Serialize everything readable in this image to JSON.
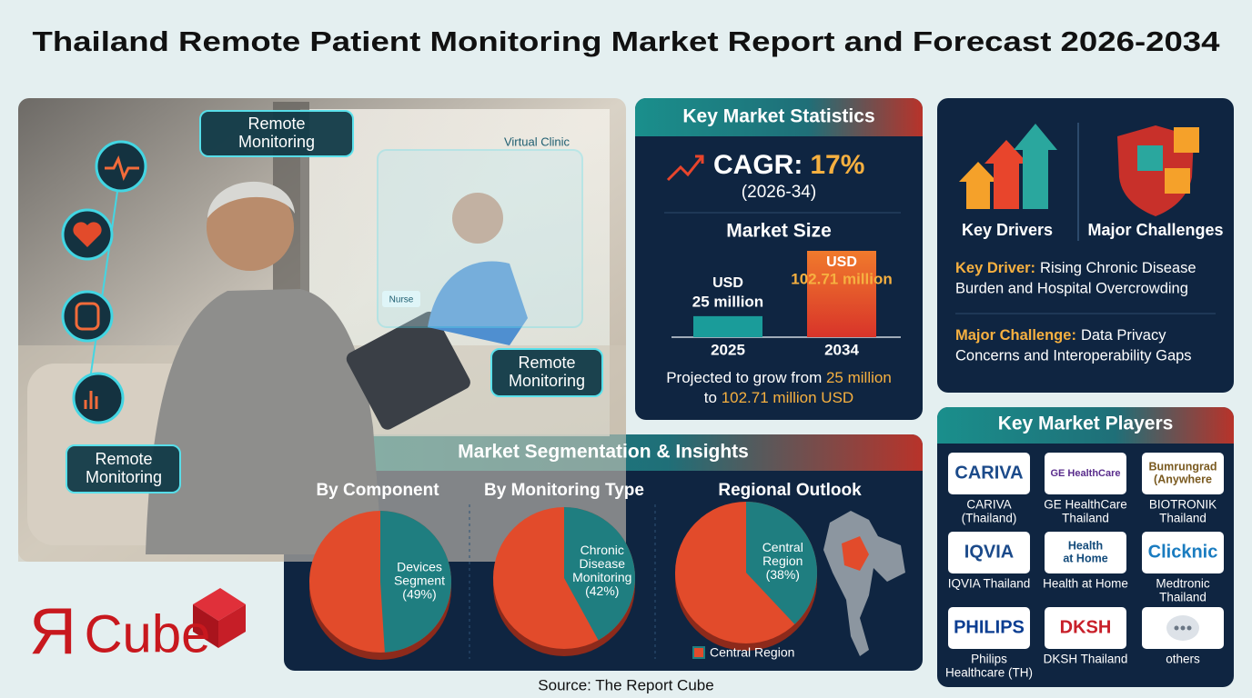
{
  "title": "Thailand Remote Patient Monitoring Market Report and Forecast 2026-2034",
  "photo": {
    "callouts": [
      [
        "Remote",
        "Monitoring"
      ],
      [
        "Remote",
        "Monitoring"
      ],
      [
        "Remote",
        "Monitoring"
      ]
    ],
    "screen_title": "Virtual Clinic",
    "screen_tag": "Nurse"
  },
  "logo": {
    "mark": "Я",
    "word": "Cube"
  },
  "statistics": {
    "heading": "Key Market Statistics",
    "cagr_label": "CAGR:",
    "cagr": "17%",
    "period": "(2026-34)",
    "market_size_heading": "Market Size",
    "market_size": {
      "unit": "USD",
      "categories": [
        "2025",
        "2034"
      ],
      "values": [
        25,
        102.71
      ],
      "value_labels": [
        "25 million",
        "102.71 million"
      ],
      "colors": [
        "#1a9c9a",
        "#e8542c"
      ]
    },
    "projection": [
      [
        "Projected to grow from ",
        "25 million"
      ],
      [
        "to ",
        "102.71 million USD"
      ]
    ]
  },
  "drivers": {
    "drivers_heading": "Key Drivers",
    "challenges_heading": "Major Challenges",
    "driver_label": "Key Driver:",
    "driver_text": [
      "Rising Chronic Disease",
      "Burden and Hospital Overcrowding"
    ],
    "challenge_label": "Major Challenge:",
    "challenge_text": [
      "Data Privacy",
      "Concerns and Interoperability Gaps"
    ]
  },
  "segmentation": {
    "heading": "Market Segmentation & Insights",
    "pies": [
      {
        "title": "By Component",
        "value": 49,
        "label": [
          "Devices",
          "Segment"
        ],
        "value_label": "(49%)"
      },
      {
        "title": "By Monitoring Type",
        "value": 42,
        "label": [
          "Chronic",
          "Disease",
          "Monitoring"
        ],
        "value_label": "(42%)"
      },
      {
        "title": "Regional Outlook",
        "value": 38,
        "label": [
          "Central",
          "Region"
        ],
        "value_label": "(38%)"
      }
    ],
    "legend": "Central Region",
    "colors": {
      "share": "#1f7e80",
      "rest": "#e24b2b"
    }
  },
  "players": {
    "heading": "Key Market Players",
    "items": [
      {
        "logo": [
          "CARIVA"
        ],
        "name": [
          "CARIVA",
          "(Thailand)"
        ]
      },
      {
        "logo": [
          "GE HealthCare"
        ],
        "name": [
          "GE HealthCare",
          "Thailand"
        ]
      },
      {
        "logo": [
          "Bumrungrad",
          "(Anywhere"
        ],
        "name": [
          "BIOTRONIK",
          "Thailand"
        ]
      },
      {
        "logo": [
          "IQVIA"
        ],
        "name": [
          "IQVIA Thailand"
        ]
      },
      {
        "logo": [
          "Health",
          "at Home"
        ],
        "name": [
          "Health at Home"
        ]
      },
      {
        "logo": [
          "Clicknic"
        ],
        "name": [
          "Medtronic",
          "Thailand"
        ]
      },
      {
        "logo": [
          "PHILIPS"
        ],
        "name": [
          "Philips",
          "Healthcare (TH)"
        ]
      },
      {
        "logo": [
          "DKSH"
        ],
        "name": [
          "DKSH Thailand"
        ]
      },
      {
        "name": [
          "others"
        ]
      }
    ]
  },
  "source": "Source: The Report Cube"
}
